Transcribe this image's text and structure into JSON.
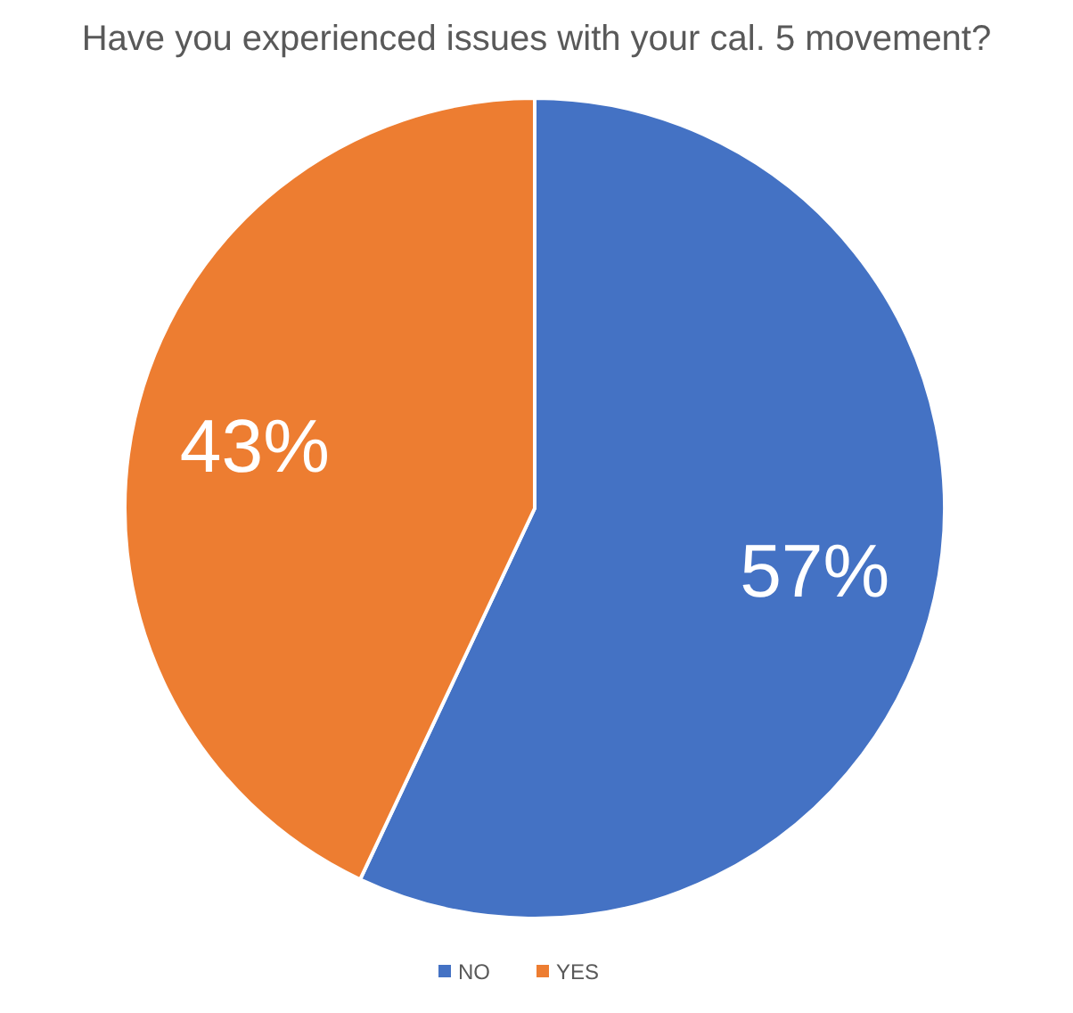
{
  "chart_data": {
    "type": "pie",
    "title": "Have you experienced issues with your cal. 5 movement?",
    "categories": [
      "NO",
      "YES"
    ],
    "values": [
      57,
      43
    ],
    "colors": [
      "#4472c4",
      "#ed7d31"
    ],
    "value_labels": [
      "57%",
      "43%"
    ],
    "legend": "bottom"
  }
}
